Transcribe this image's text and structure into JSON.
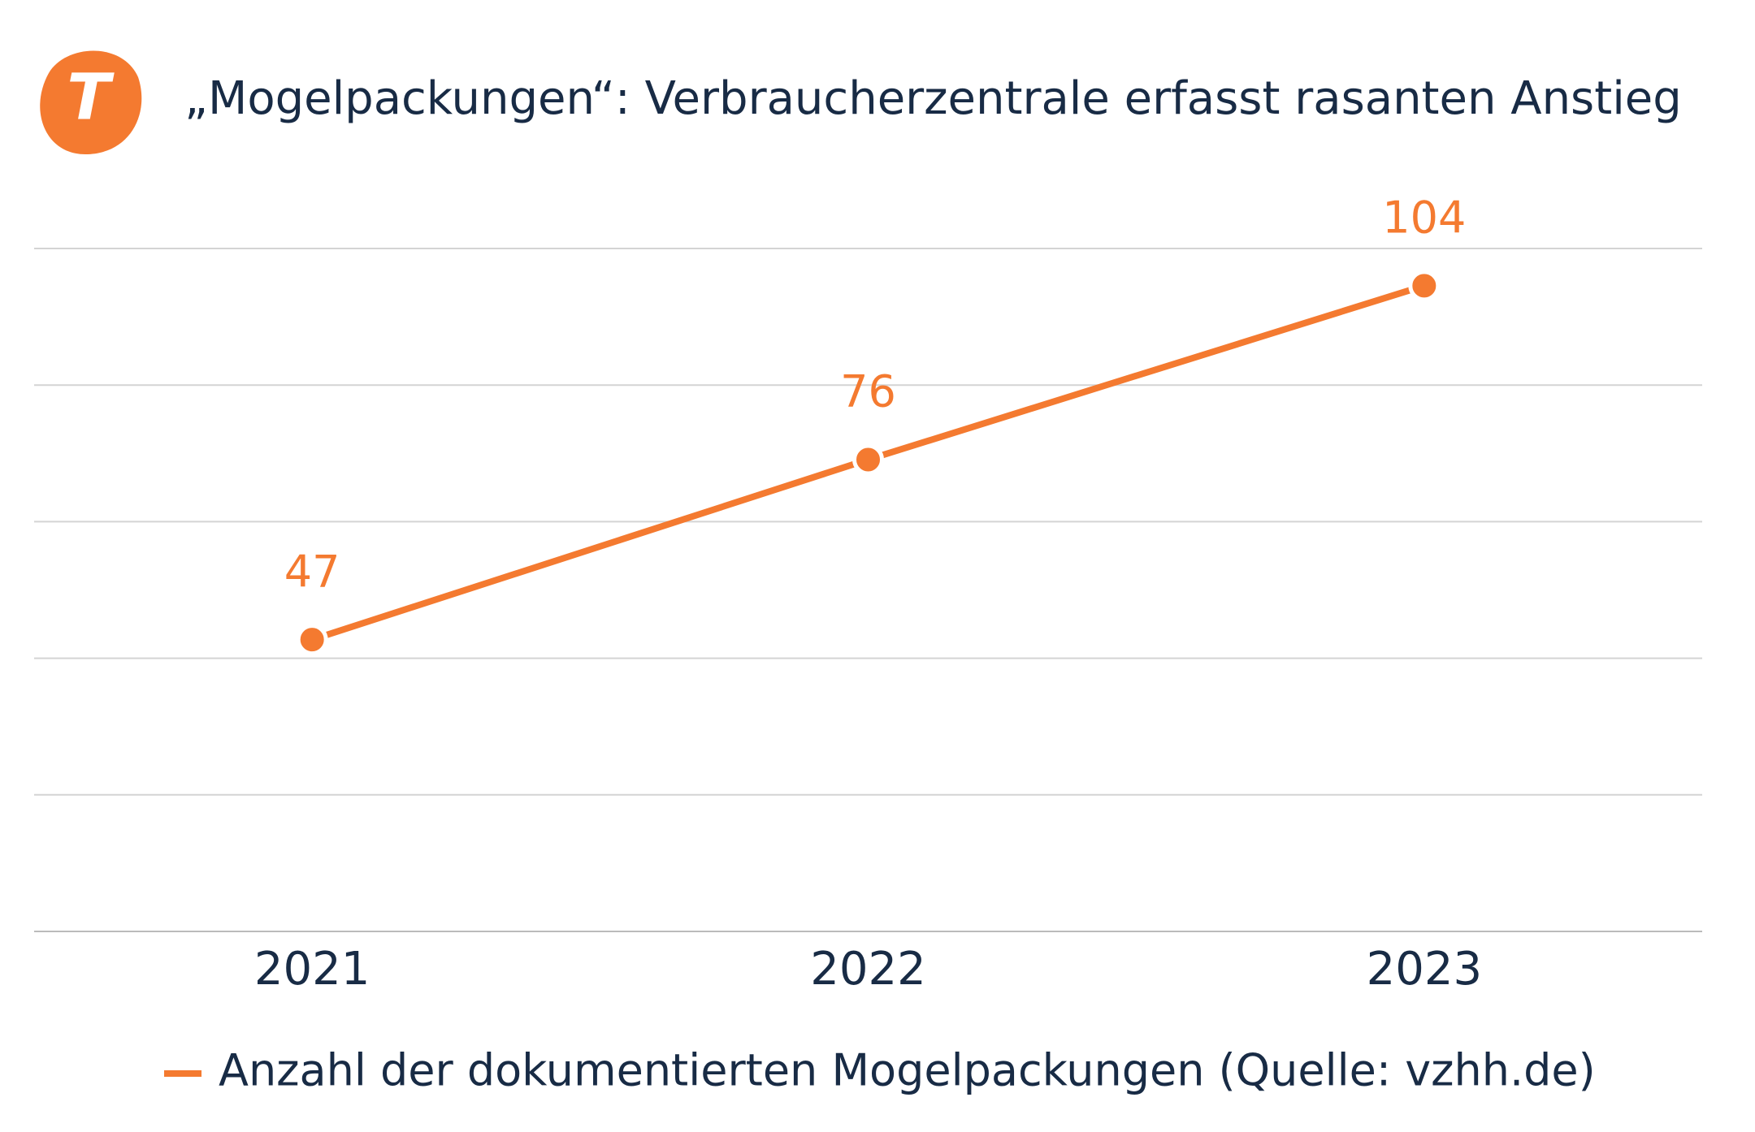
{
  "logo": "T",
  "chart_data": {
    "type": "line",
    "title": "„Mogelpackungen“: Verbraucherzentrale erfasst rasanten Anstieg",
    "categories": [
      "2021",
      "2022",
      "2023"
    ],
    "series": [
      {
        "name": "Anzahl der dokumentierten Mogelpackungen (Quelle: vzhh.de)",
        "color": "#f47a30",
        "values": [
          47,
          76,
          104
        ]
      }
    ],
    "ylim": [
      0,
      110
    ],
    "yticks": [
      0,
      22,
      44,
      66,
      88,
      110
    ],
    "grid": true,
    "legend": "bottom"
  }
}
